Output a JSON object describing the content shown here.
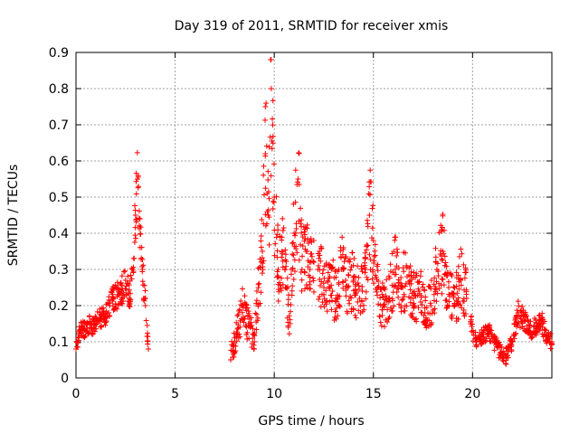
{
  "chart_data": {
    "type": "scatter",
    "title": "Day 319 of 2011, SRMTID for receiver xmis",
    "xlabel": "GPS time / hours",
    "ylabel": "SRMTID / TECUs",
    "xlim": [
      0,
      24
    ],
    "ylim": [
      0,
      0.9
    ],
    "x_ticks": [
      0,
      5,
      10,
      15,
      20
    ],
    "y_ticks": [
      0,
      0.1,
      0.2,
      0.3,
      0.4,
      0.5,
      0.6,
      0.7,
      0.8,
      0.9
    ],
    "x_tick_labels": [
      "0",
      "5",
      "10",
      "15",
      "20"
    ],
    "y_tick_labels": [
      "0",
      "0.1",
      "0.2",
      "0.3",
      "0.4",
      "0.5",
      "0.6",
      "0.7",
      "0.8",
      "0.9"
    ],
    "grid": true,
    "marker": "+",
    "series": [
      {
        "name": "SRMTID",
        "color": "#ff0000",
        "segments": [
          {
            "x": [
              0.0,
              0.15,
              0.3,
              0.5,
              0.7,
              0.9,
              1.1,
              1.3,
              1.5,
              1.7,
              1.9,
              2.1,
              2.3,
              2.5,
              2.7,
              2.85,
              3.0,
              3.1,
              3.2,
              3.35,
              3.5,
              3.65
            ],
            "y": [
              0.08,
              0.12,
              0.14,
              0.13,
              0.15,
              0.14,
              0.16,
              0.17,
              0.17,
              0.2,
              0.22,
              0.23,
              0.24,
              0.27,
              0.22,
              0.3,
              0.45,
              0.55,
              0.42,
              0.3,
              0.2,
              0.08
            ]
          },
          {
            "x": [
              7.8,
              8.1,
              8.4,
              8.7,
              9.0,
              9.2,
              9.4,
              9.55,
              9.7,
              9.85,
              10.0,
              10.2,
              10.4,
              10.6,
              10.8,
              11.0,
              11.2,
              11.4,
              11.6,
              11.8,
              12.0
            ],
            "y": [
              0.05,
              0.12,
              0.2,
              0.15,
              0.1,
              0.25,
              0.35,
              0.62,
              0.45,
              0.8,
              0.5,
              0.3,
              0.35,
              0.25,
              0.15,
              0.4,
              0.55,
              0.3,
              0.35,
              0.3,
              0.32
            ]
          },
          {
            "x": [
              12.2,
              12.5,
              12.8,
              13.1,
              13.4,
              13.7,
              14.0,
              14.3,
              14.6,
              14.8,
              15.0,
              15.2,
              15.5,
              15.8,
              16.1,
              16.4,
              16.7,
              17.0,
              17.3,
              17.6,
              17.9,
              18.2,
              18.5,
              18.8,
              19.1,
              19.4,
              19.7
            ],
            "y": [
              0.3,
              0.25,
              0.28,
              0.22,
              0.3,
              0.25,
              0.27,
              0.22,
              0.3,
              0.45,
              0.38,
              0.25,
              0.2,
              0.22,
              0.3,
              0.25,
              0.28,
              0.22,
              0.24,
              0.18,
              0.2,
              0.3,
              0.35,
              0.25,
              0.2,
              0.27,
              0.22
            ]
          },
          {
            "x": [
              19.9,
              20.2,
              20.5,
              20.8,
              21.1,
              21.4,
              21.7,
              22.0,
              22.3,
              22.6,
              22.9,
              23.2,
              23.5,
              23.8,
              24.0
            ],
            "y": [
              0.15,
              0.1,
              0.12,
              0.13,
              0.1,
              0.07,
              0.06,
              0.1,
              0.18,
              0.16,
              0.13,
              0.14,
              0.15,
              0.11,
              0.1
            ]
          }
        ],
        "spread": [
          0.05,
          0.1,
          0.1,
          0.06
        ]
      }
    ]
  }
}
